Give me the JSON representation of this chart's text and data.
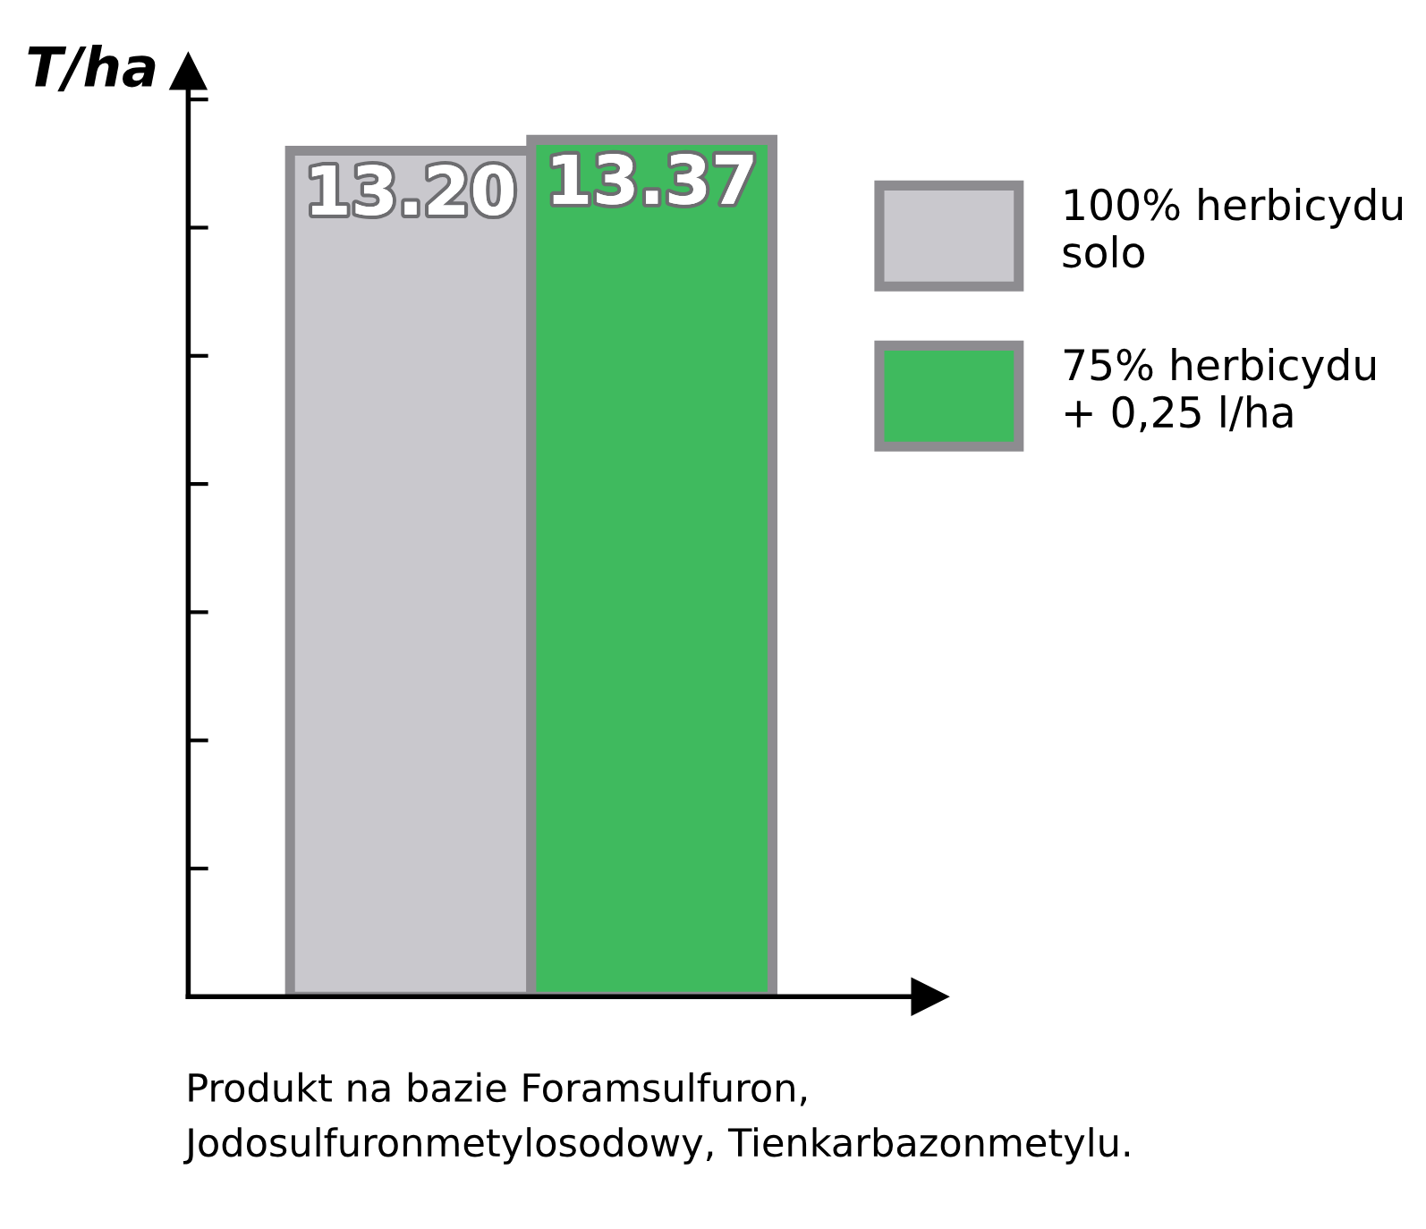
{
  "chart_data": {
    "type": "bar",
    "ylabel": "T/ha",
    "categories": [
      null
    ],
    "series": [
      {
        "name": "100% herbicydu\nsolo",
        "color": "#c9c8cd",
        "values": [
          13.2
        ],
        "value_labels": [
          "13.20"
        ]
      },
      {
        "name": "75% herbicydu\n+ 0,25 l/ha",
        "color": "#3fba5e",
        "values": [
          13.37
        ],
        "value_labels": [
          "13.37"
        ]
      }
    ],
    "tick_labels": false,
    "legend": "right",
    "grid": false,
    "annotations": [
      "Produkt na bazie Foramsulfuron,\nJodosulfuronmetylosodowy, Tienkarbazonmetylu."
    ]
  }
}
